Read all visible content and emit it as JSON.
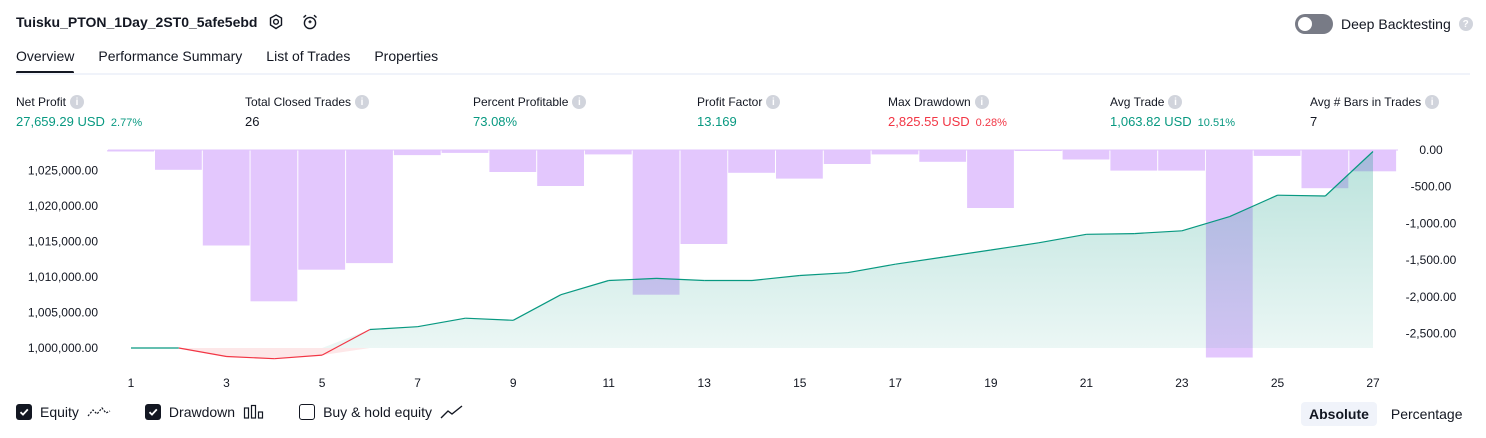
{
  "header": {
    "strategy_name": "Tuisku_PTON_1Day_2ST0_5afe5ebd",
    "deep_backtesting_label": "Deep Backtesting"
  },
  "tabs": [
    {
      "label": "Overview",
      "active": true
    },
    {
      "label": "Performance Summary",
      "active": false
    },
    {
      "label": "List of Trades",
      "active": false
    },
    {
      "label": "Properties",
      "active": false
    }
  ],
  "metrics": [
    {
      "label": "Net Profit",
      "value": "27,659.29 USD",
      "sub": "2.77%",
      "color": "#089981"
    },
    {
      "label": "Total Closed Trades",
      "value": "26",
      "sub": "",
      "color": "#131722"
    },
    {
      "label": "Percent Profitable",
      "value": "73.08%",
      "sub": "",
      "color": "#089981"
    },
    {
      "label": "Profit Factor",
      "value": "13.169",
      "sub": "",
      "color": "#089981"
    },
    {
      "label": "Max Drawdown",
      "value": "2,825.55 USD",
      "sub": "0.28%",
      "color": "#f23645"
    },
    {
      "label": "Avg Trade",
      "value": "1,063.82 USD",
      "sub": "10.51%",
      "color": "#089981"
    },
    {
      "label": "Avg # Bars in Trades",
      "value": "7",
      "sub": "",
      "color": "#131722"
    }
  ],
  "chart_data": {
    "type": "area",
    "x": [
      1,
      2,
      3,
      4,
      5,
      6,
      7,
      8,
      9,
      10,
      11,
      12,
      13,
      14,
      15,
      16,
      17,
      18,
      19,
      20,
      21,
      22,
      23,
      24,
      25,
      26,
      27
    ],
    "x_ticks": [
      "1",
      "3",
      "5",
      "7",
      "9",
      "11",
      "13",
      "15",
      "17",
      "19",
      "21",
      "23",
      "25",
      "27"
    ],
    "equity": {
      "ticks": [
        "1,025,000.00",
        "1,020,000.00",
        "1,015,000.00",
        "1,010,000.00",
        "1,005,000.00",
        "1,000,000.00"
      ],
      "tick_values": [
        1025000,
        1020000,
        1015000,
        1010000,
        1005000,
        1000000
      ],
      "values": [
        1000000,
        1000000,
        998800,
        998500,
        999000,
        1002600,
        1003000,
        1004200,
        1003900,
        1007500,
        1009500,
        1009800,
        1009500,
        1009500,
        1010200,
        1010600,
        1011800,
        1012800,
        1013800,
        1014800,
        1016000,
        1016100,
        1016500,
        1018500,
        1021500,
        1021400,
        1027659
      ],
      "color": "#089981",
      "negative_color": "#f23645"
    },
    "drawdown": {
      "ticks": [
        "0.00",
        "-500.00",
        "-1,000.00",
        "-1,500.00",
        "-2,000.00",
        "-2,500.00"
      ],
      "tick_values": [
        0,
        -500,
        -1000,
        -1500,
        -2000,
        -2500
      ],
      "bars": [
        {
          "from": 1,
          "to": 2,
          "value": -20
        },
        {
          "from": 2,
          "to": 3,
          "value": -270
        },
        {
          "from": 3,
          "to": 4,
          "value": -1300
        },
        {
          "from": 4,
          "to": 5,
          "value": -2060
        },
        {
          "from": 5,
          "to": 6,
          "value": -1630
        },
        {
          "from": 6,
          "to": 7,
          "value": -1540
        },
        {
          "from": 7,
          "to": 8,
          "value": -70
        },
        {
          "from": 8,
          "to": 9,
          "value": -40
        },
        {
          "from": 9,
          "to": 10,
          "value": -300
        },
        {
          "from": 10,
          "to": 11,
          "value": -490
        },
        {
          "from": 11,
          "to": 12,
          "value": -60
        },
        {
          "from": 12,
          "to": 13,
          "value": -1970
        },
        {
          "from": 13,
          "to": 14,
          "value": -1280
        },
        {
          "from": 14,
          "to": 15,
          "value": -310
        },
        {
          "from": 15,
          "to": 16,
          "value": -390
        },
        {
          "from": 16,
          "to": 17,
          "value": -190
        },
        {
          "from": 17,
          "to": 18,
          "value": -60
        },
        {
          "from": 18,
          "to": 19,
          "value": -160
        },
        {
          "from": 19,
          "to": 20,
          "value": -790
        },
        {
          "from": 20,
          "to": 21,
          "value": -10
        },
        {
          "from": 21,
          "to": 22,
          "value": -130
        },
        {
          "from": 22,
          "to": 23,
          "value": -280
        },
        {
          "from": 23,
          "to": 24,
          "value": -280
        },
        {
          "from": 24,
          "to": 25,
          "value": -2825
        },
        {
          "from": 25,
          "to": 26,
          "value": -80
        },
        {
          "from": 26,
          "to": 27,
          "value": -520
        },
        {
          "from": 27,
          "to": 28,
          "value": -290
        }
      ],
      "color": "#e1c4fd"
    },
    "grid": false
  },
  "legend": {
    "equity_label": "Equity",
    "drawdown_label": "Drawdown",
    "buyhold_label": "Buy & hold equity"
  },
  "mode": {
    "absolute_label": "Absolute",
    "percentage_label": "Percentage"
  }
}
